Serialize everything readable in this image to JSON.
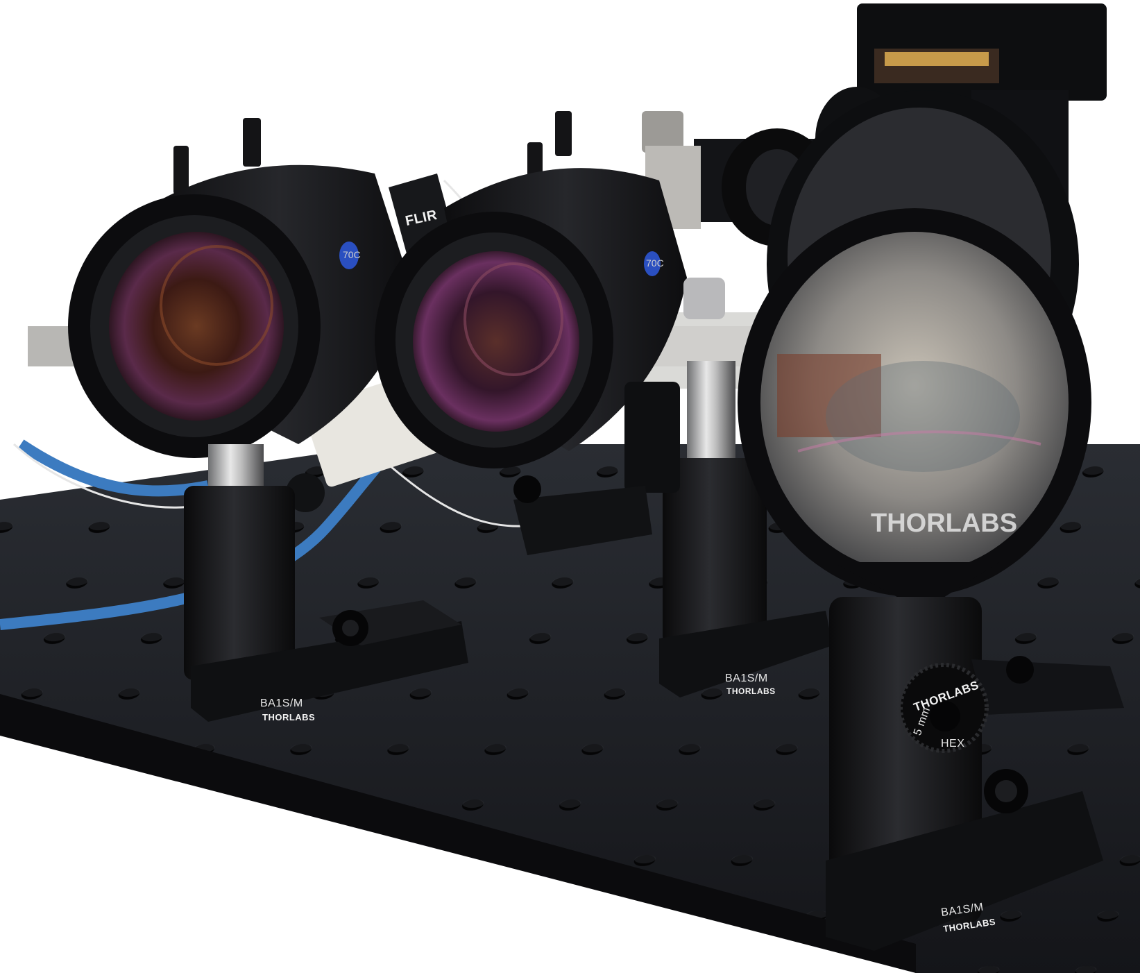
{
  "photo": {
    "subject": "optical bench with two camera lenses and a round lens on post mounts"
  },
  "camera_brand": "FLIR",
  "base_labels": [
    {
      "model": "BA1S/M",
      "brand": "THORLABS"
    },
    {
      "model": "BA1S/M",
      "brand": "THORLABS"
    },
    {
      "model": "BA1S/M",
      "brand": "THORLABS"
    }
  ],
  "lens_mount_brand": "THORLABS",
  "knob": {
    "brand": "THORLABS",
    "size": "5 mm",
    "type": "HEX"
  },
  "lens_badges": [
    "70C",
    "70C"
  ],
  "colors": {
    "background": "#ffffff",
    "breadboard": "#1b1d21",
    "cable": "#3c7bc0",
    "lens_glass": "#4a2418"
  }
}
